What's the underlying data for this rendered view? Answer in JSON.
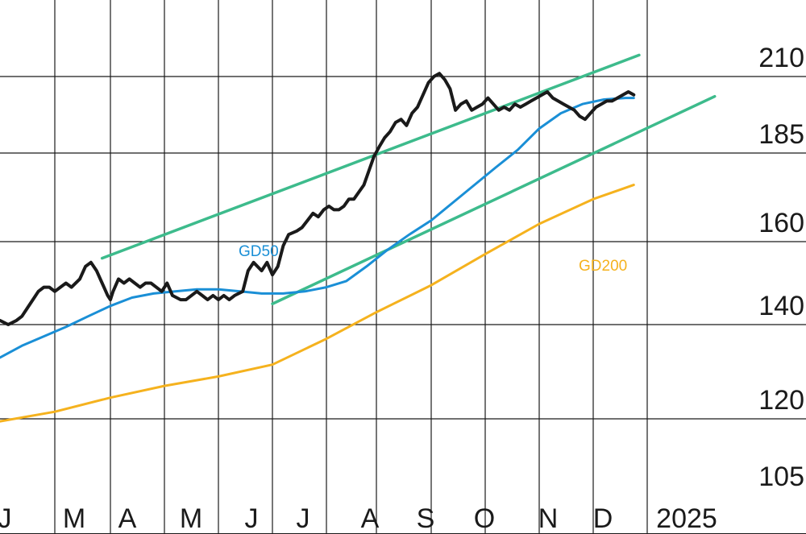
{
  "chart_data": {
    "type": "line",
    "title": "",
    "xlabel": "",
    "ylabel": "",
    "ylim": [
      105,
      210
    ],
    "y_ticks": [
      "210",
      "185",
      "160",
      "140",
      "120",
      "105"
    ],
    "x_ticks": [
      "J",
      "M",
      "A",
      "M",
      "J",
      "J",
      "A",
      "S",
      "O",
      "N",
      "D",
      "2025"
    ],
    "annotations": [
      {
        "text": "GD50",
        "color": "#1a8fd6"
      },
      {
        "text": "GD200",
        "color": "#f5b21e"
      }
    ],
    "grid": true,
    "colors": {
      "price": "#1a1a1a",
      "gd50": "#1a8fd6",
      "gd200": "#f5b21e",
      "trend": "#3dbb8c",
      "grid": "#1a1a1a"
    },
    "series": [
      {
        "name": "",
        "color": "#1a1a1a",
        "x": [
          0,
          0.15,
          0.3,
          0.4,
          0.5,
          0.6,
          0.7,
          0.8,
          0.9,
          1.0,
          1.1,
          1.2,
          1.3,
          1.45,
          1.55,
          1.65,
          1.75,
          1.85,
          1.95,
          2.0,
          2.05,
          2.15,
          2.25,
          2.35,
          2.45,
          2.55,
          2.65,
          2.75,
          2.85,
          2.95,
          3.05,
          3.15,
          3.3,
          3.4,
          3.5,
          3.6,
          3.7,
          3.8,
          3.9,
          4.0,
          4.1,
          4.2,
          4.3,
          4.45,
          4.55,
          4.65,
          4.8,
          4.9,
          5.0,
          5.1,
          5.2,
          5.3,
          5.45,
          5.55,
          5.65,
          5.75,
          5.85,
          5.95,
          6.05,
          6.15,
          6.25,
          6.35,
          6.45,
          6.55,
          6.65,
          6.75,
          6.85,
          6.95,
          7.05,
          7.15,
          7.25,
          7.35,
          7.45,
          7.55,
          7.65,
          7.75,
          7.85,
          7.95,
          8.05,
          8.15,
          8.25,
          8.35,
          8.45,
          8.55,
          8.65,
          8.75,
          8.85,
          8.95,
          9.05,
          9.15,
          9.25,
          9.35,
          9.45,
          9.55,
          9.65,
          9.75,
          9.85,
          9.95,
          10.05,
          10.15,
          10.25,
          10.35,
          10.45,
          10.55,
          10.65,
          10.75,
          10.85,
          10.95,
          11.05,
          11.15,
          11.25,
          11.35,
          11.45,
          11.55,
          11.65,
          11.75
        ],
        "values": [
          141,
          140,
          141,
          142,
          144,
          146,
          148,
          149,
          149,
          148,
          149,
          150,
          149,
          151,
          154,
          155,
          153,
          150,
          147,
          146,
          148,
          151,
          150,
          151,
          150,
          149,
          150,
          150,
          149,
          148,
          150,
          147,
          146,
          146,
          147,
          148,
          147,
          146,
          147,
          146,
          147,
          146,
          147,
          148,
          153,
          155,
          153,
          155,
          152,
          154,
          159,
          162,
          163,
          164,
          166,
          168,
          167,
          169,
          170,
          169,
          169,
          170,
          172,
          172,
          174,
          176,
          180,
          184,
          187,
          190,
          192,
          195,
          196,
          194,
          198,
          200,
          204,
          208,
          210,
          211,
          209,
          206,
          199,
          201,
          202,
          199,
          200,
          201,
          203,
          201,
          199,
          200,
          199,
          201,
          200,
          201,
          202,
          203,
          204,
          205,
          203,
          202,
          201,
          200,
          199,
          197,
          196,
          198,
          200,
          201,
          202,
          202,
          203,
          204,
          205,
          204
        ]
      },
      {
        "name": "GD50",
        "color": "#1a8fd6",
        "x": [
          0,
          0.4,
          0.8,
          1.2,
          1.6,
          2.0,
          2.4,
          2.8,
          3.2,
          3.6,
          4.0,
          4.4,
          4.8,
          5.2,
          5.6,
          6.0,
          6.4,
          6.8,
          7.2,
          7.6,
          8.0,
          8.4,
          8.8,
          9.2,
          9.6,
          10.0,
          10.4,
          10.8,
          11.2,
          11.6,
          11.75
        ],
        "values": [
          133,
          135.5,
          137.5,
          139.5,
          142,
          144.5,
          146.5,
          147.5,
          148,
          148.5,
          148.5,
          148,
          147.5,
          147.5,
          148,
          149,
          150.5,
          154,
          158,
          162,
          166,
          171,
          176,
          181,
          186,
          193,
          198,
          201,
          202.5,
          203,
          203
        ]
      },
      {
        "name": "GD200",
        "color": "#f5b21e",
        "x": [
          0,
          1,
          2,
          3,
          4,
          5,
          6,
          7,
          8,
          9,
          10,
          11,
          11.75
        ],
        "values": [
          119.5,
          121.5,
          124.5,
          127,
          129,
          131.5,
          137,
          143,
          149.5,
          157,
          165,
          172,
          176
        ]
      }
    ],
    "trendlines": [
      {
        "x": [
          1.85,
          11.85
        ],
        "values": [
          156,
          217
        ]
      },
      {
        "x": [
          5.0,
          13.25
        ],
        "values": [
          145,
          203.5
        ]
      }
    ]
  }
}
